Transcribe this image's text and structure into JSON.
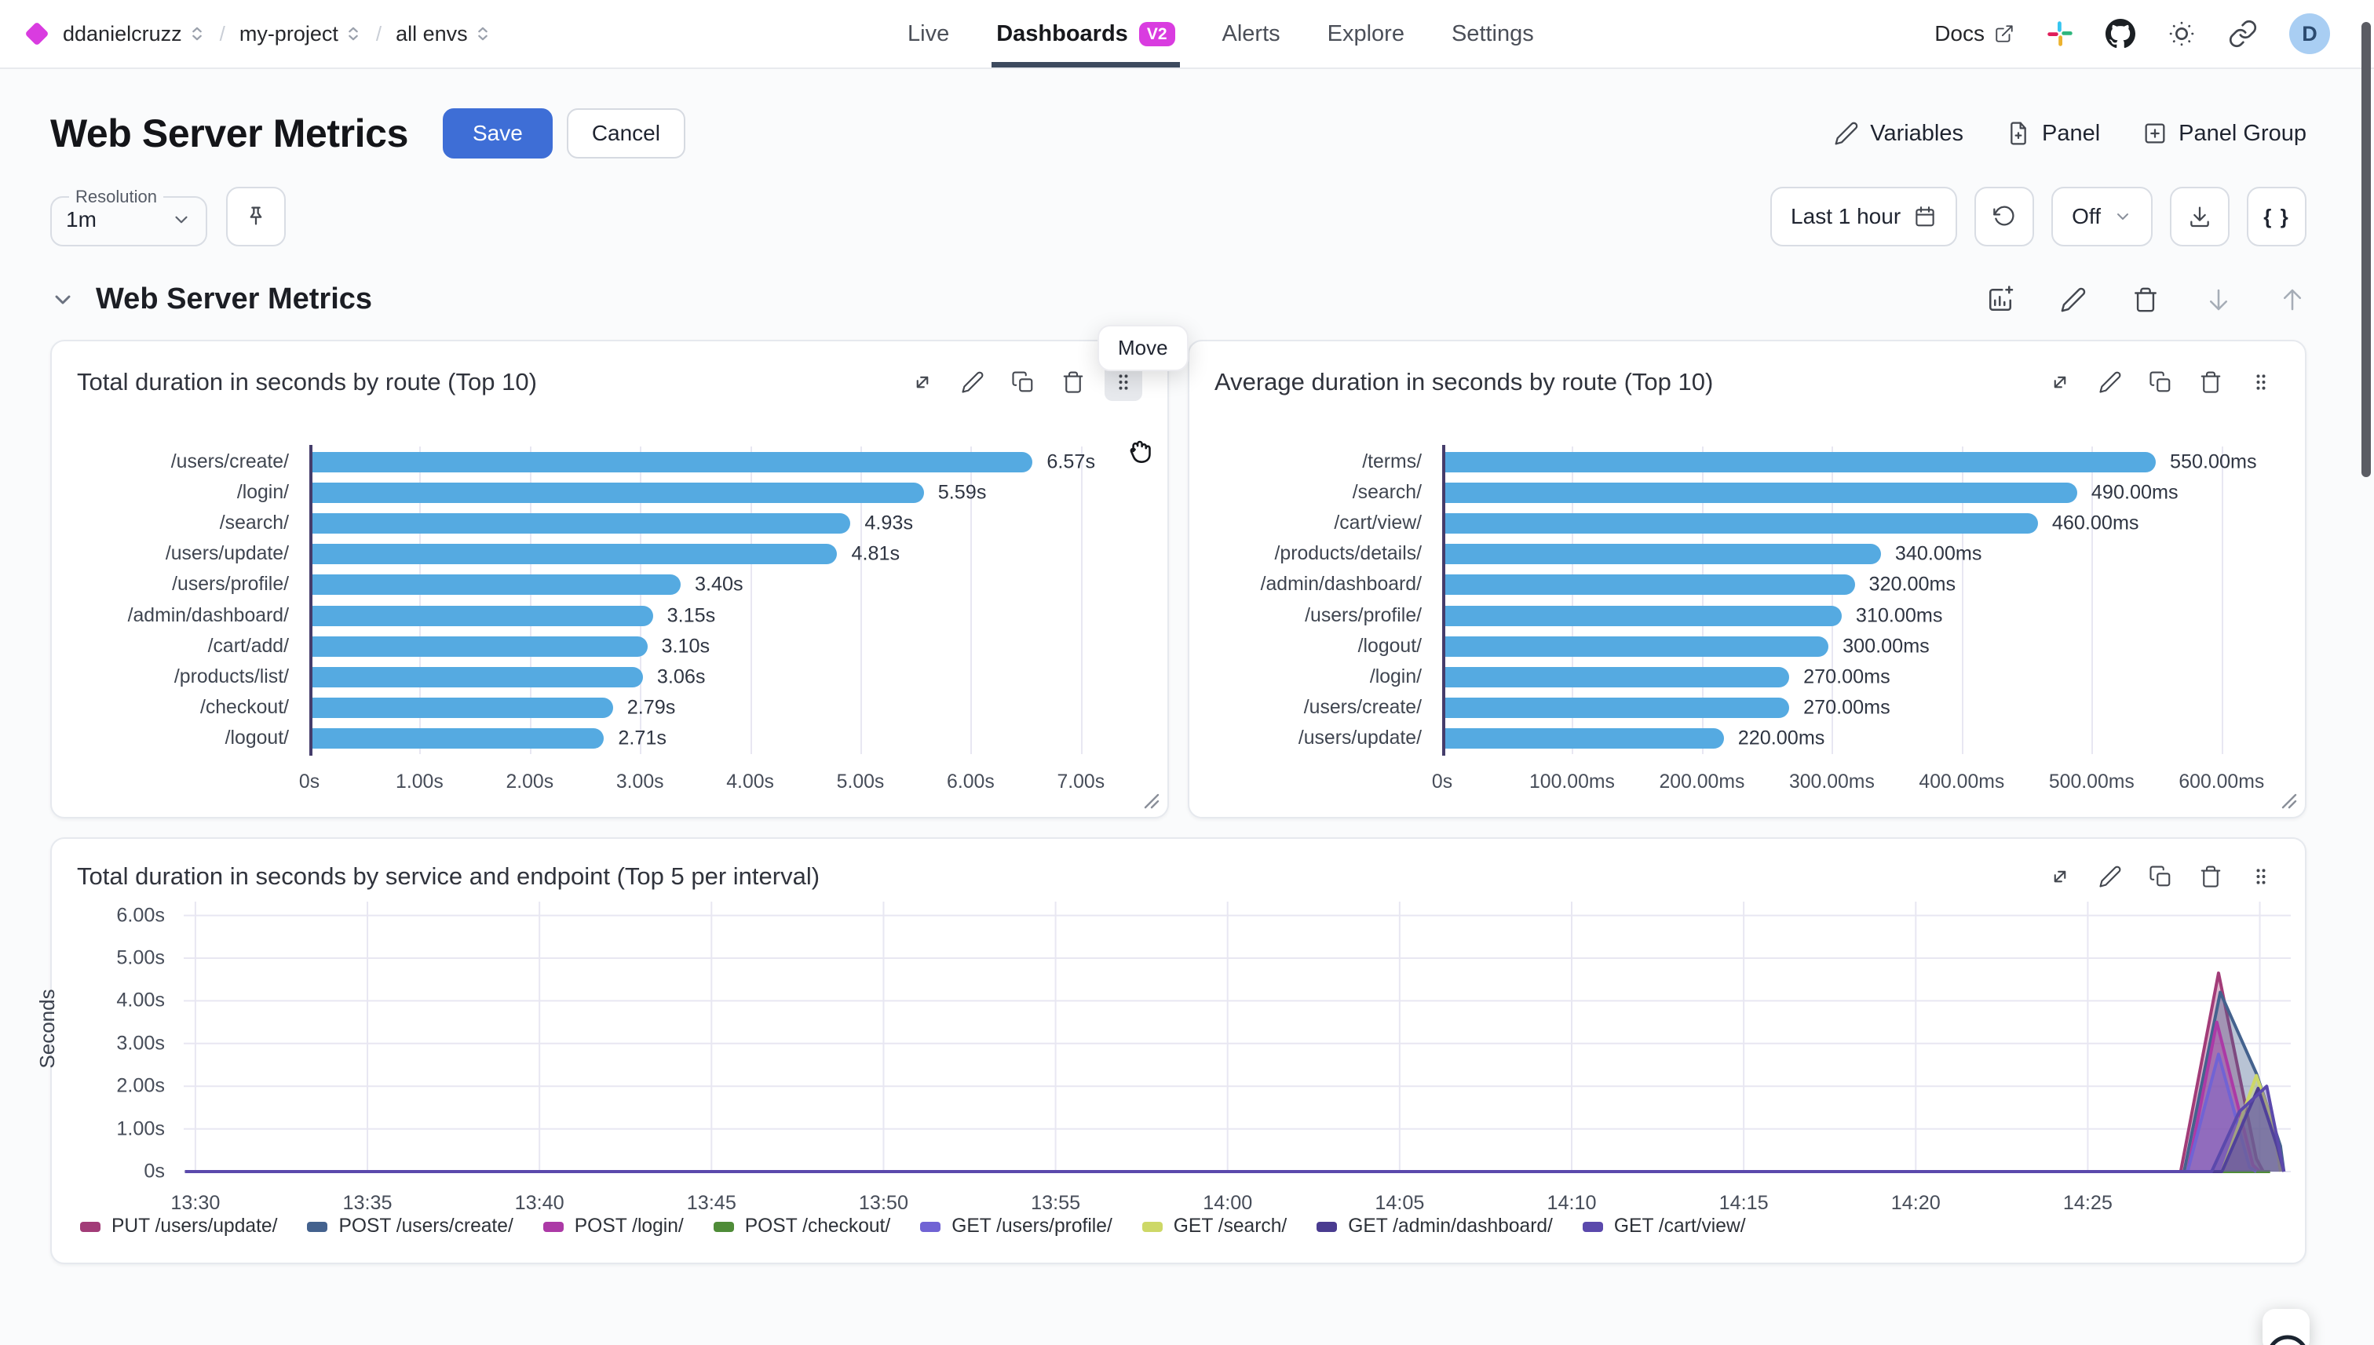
{
  "topbar": {
    "breadcrumb": [
      {
        "label": "ddanielcruzz"
      },
      {
        "label": "my-project"
      },
      {
        "label": "all envs"
      }
    ],
    "breadcrumb_separator": "/",
    "nav": [
      {
        "label": "Live",
        "active": false
      },
      {
        "label": "Dashboards",
        "active": true,
        "badge": "V2"
      },
      {
        "label": "Alerts",
        "active": false
      },
      {
        "label": "Explore",
        "active": false
      },
      {
        "label": "Settings",
        "active": false
      }
    ],
    "docs_label": "Docs",
    "avatar_initial": "D",
    "icons": [
      "external-link-icon",
      "slack-icon",
      "github-icon",
      "brightness-icon",
      "link-icon"
    ]
  },
  "header": {
    "title": "Web Server Metrics",
    "save_label": "Save",
    "cancel_label": "Cancel",
    "actions": [
      {
        "label": "Variables",
        "icon": "pencil-icon"
      },
      {
        "label": "Panel",
        "icon": "file-plus-icon"
      },
      {
        "label": "Panel Group",
        "icon": "plus-square-icon"
      }
    ]
  },
  "toolbar": {
    "resolution_label": "Resolution",
    "resolution_value": "1m",
    "pin_icon": "pin-icon",
    "time_range": "Last 1 hour",
    "auto_refresh": "Off",
    "braces": "{ }"
  },
  "section": {
    "title": "Web Server Metrics",
    "move_tooltip": "Move",
    "icons": [
      "add-chart-icon",
      "pencil-icon",
      "trash-icon",
      "arrow-down-icon",
      "arrow-up-icon"
    ]
  },
  "colors": {
    "accent_magenta": "#d93ce0",
    "save_blue": "#3e6ed6",
    "bar_blue": "#55aae1",
    "tab_underline": "#3d4a5e",
    "axis_indigo": "#453d6b",
    "avatar_bg": "#a9cef3"
  },
  "chart_data": [
    {
      "type": "bar",
      "orientation": "horizontal",
      "title": "Total duration in seconds by route (Top 10)",
      "unit": "s",
      "label_width": 148,
      "bar_color": "#55aae1",
      "categories": [
        "/users/create/",
        "/login/",
        "/search/",
        "/users/update/",
        "/users/profile/",
        "/admin/dashboard/",
        "/cart/add/",
        "/products/list/",
        "/checkout/",
        "/logout/"
      ],
      "values": [
        6.57,
        5.59,
        4.93,
        4.81,
        3.4,
        3.15,
        3.1,
        3.06,
        2.79,
        2.71
      ],
      "value_labels": [
        "6.57s",
        "5.59s",
        "4.93s",
        "4.81s",
        "3.40s",
        "3.15s",
        "3.10s",
        "3.06s",
        "2.79s",
        "2.71s"
      ],
      "xlim": [
        0,
        7.5
      ],
      "x_ticks": [
        {
          "value": 0,
          "label": "0s"
        },
        {
          "value": 1,
          "label": "1.00s"
        },
        {
          "value": 2,
          "label": "2.00s"
        },
        {
          "value": 3,
          "label": "3.00s"
        },
        {
          "value": 4,
          "label": "4.00s"
        },
        {
          "value": 5,
          "label": "5.00s"
        },
        {
          "value": 6,
          "label": "6.00s"
        },
        {
          "value": 7,
          "label": "7.00s"
        }
      ]
    },
    {
      "type": "bar",
      "orientation": "horizontal",
      "title": "Average duration in seconds by route (Top 10)",
      "unit": "ms",
      "label_width": 145,
      "bar_color": "#55aae1",
      "categories": [
        "/terms/",
        "/search/",
        "/cart/view/",
        "/products/details/",
        "/admin/dashboard/",
        "/users/profile/",
        "/logout/",
        "/login/",
        "/users/create/",
        "/users/update/"
      ],
      "values": [
        550,
        490,
        460,
        340,
        320,
        310,
        300,
        270,
        270,
        220
      ],
      "value_labels": [
        "550.00ms",
        "490.00ms",
        "460.00ms",
        "340.00ms",
        "320.00ms",
        "310.00ms",
        "300.00ms",
        "270.00ms",
        "270.00ms",
        "220.00ms"
      ],
      "xlim": [
        0,
        640
      ],
      "x_ticks": [
        {
          "value": 0,
          "label": "0s"
        },
        {
          "value": 100,
          "label": "100.00ms"
        },
        {
          "value": 200,
          "label": "200.00ms"
        },
        {
          "value": 300,
          "label": "300.00ms"
        },
        {
          "value": 400,
          "label": "400.00ms"
        },
        {
          "value": 500,
          "label": "500.00ms"
        },
        {
          "value": 600,
          "label": "600.00ms"
        }
      ]
    },
    {
      "type": "area",
      "title": "Total duration in seconds by service and endpoint (Top 5 per interval)",
      "ylabel": "Seconds",
      "ylim": [
        0,
        6.42
      ],
      "xlim": [
        29.66,
        90.9
      ],
      "x_unit": "minutes_after_13:00",
      "y_ticks": [
        {
          "value": 0,
          "label": "0s"
        },
        {
          "value": 1,
          "label": "1.00s"
        },
        {
          "value": 2,
          "label": "2.00s"
        },
        {
          "value": 3,
          "label": "3.00s"
        },
        {
          "value": 4,
          "label": "4.00s"
        },
        {
          "value": 5,
          "label": "5.00s"
        },
        {
          "value": 6,
          "label": "6.00s"
        }
      ],
      "x_ticks": [
        {
          "value": 30,
          "label": "13:30"
        },
        {
          "value": 35,
          "label": "13:35"
        },
        {
          "value": 40,
          "label": "13:40"
        },
        {
          "value": 45,
          "label": "13:45"
        },
        {
          "value": 50,
          "label": "13:50"
        },
        {
          "value": 55,
          "label": "13:55"
        },
        {
          "value": 60,
          "label": "14:00"
        },
        {
          "value": 65,
          "label": "14:05"
        },
        {
          "value": 70,
          "label": "14:10"
        },
        {
          "value": 75,
          "label": "14:15"
        },
        {
          "value": 80,
          "label": "14:20"
        },
        {
          "value": 85,
          "label": "14:25"
        },
        {
          "value": 90,
          "label": ""
        }
      ],
      "legend_position": "bottom",
      "series": [
        {
          "name": "PUT /users/update/",
          "color": "#a23c78",
          "points": [
            [
              29.7,
              0
            ],
            [
              87.7,
              0
            ],
            [
              88.8,
              4.65
            ],
            [
              89.9,
              0.3
            ],
            [
              90.1,
              0
            ]
          ]
        },
        {
          "name": "POST /users/create/",
          "color": "#44628e",
          "points": [
            [
              29.7,
              0
            ],
            [
              87.8,
              0
            ],
            [
              88.85,
              4.2
            ],
            [
              89.9,
              2.3
            ],
            [
              90.6,
              0.6
            ],
            [
              90.7,
              0
            ]
          ]
        },
        {
          "name": "POST /login/",
          "color": "#ac3aa6",
          "points": [
            [
              29.7,
              0
            ],
            [
              87.9,
              0
            ],
            [
              88.75,
              3.5
            ],
            [
              89.8,
              0.15
            ],
            [
              90.0,
              0
            ]
          ]
        },
        {
          "name": "POST /checkout/",
          "color": "#4f8c38",
          "points": [
            [
              29.7,
              0
            ],
            [
              90.3,
              0
            ]
          ]
        },
        {
          "name": "GET /users/profile/",
          "color": "#7163d4",
          "points": [
            [
              29.7,
              0
            ],
            [
              87.9,
              0
            ],
            [
              88.8,
              2.75
            ],
            [
              89.7,
              0.1
            ],
            [
              89.9,
              0
            ]
          ]
        },
        {
          "name": "GET /search/",
          "color": "#cdd867",
          "points": [
            [
              29.7,
              0
            ],
            [
              88.9,
              0
            ],
            [
              89.9,
              2.25
            ],
            [
              90.4,
              1.1
            ],
            [
              90.6,
              0
            ]
          ]
        },
        {
          "name": "GET /admin/dashboard/",
          "color": "#4a3c90",
          "points": [
            [
              29.7,
              0
            ],
            [
              88.9,
              0
            ],
            [
              89.95,
              1.95
            ],
            [
              90.5,
              0.6
            ],
            [
              90.7,
              0
            ]
          ]
        },
        {
          "name": "GET /cart/view/",
          "color": "#5b49ac",
          "points": [
            [
              29.7,
              0
            ],
            [
              88.6,
              0
            ],
            [
              89.4,
              1.4
            ],
            [
              90.2,
              2.0
            ],
            [
              90.7,
              0
            ]
          ]
        }
      ]
    }
  ]
}
